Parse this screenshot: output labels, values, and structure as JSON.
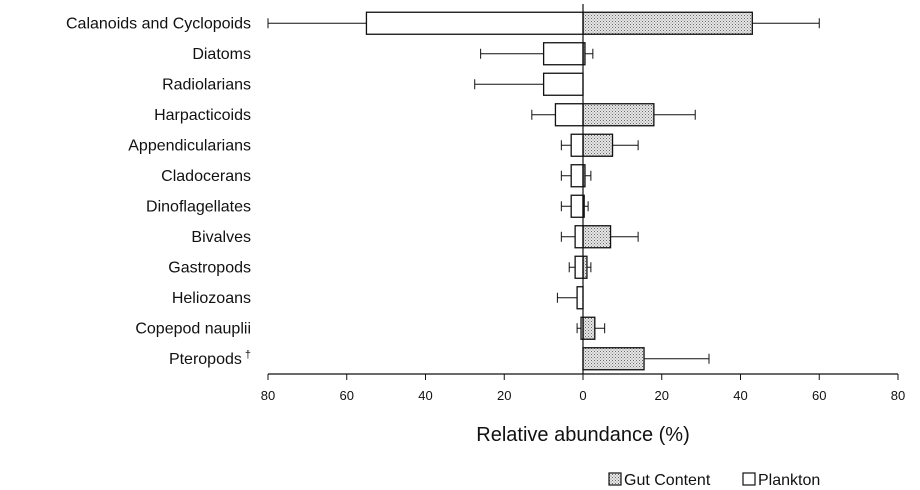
{
  "chart_data": {
    "type": "bar",
    "orientation": "horizontal-diverging",
    "xlabel": "Relative abundance (%)",
    "xlim": [
      -80,
      80
    ],
    "x_ticks": [
      -80,
      -60,
      -40,
      -20,
      0,
      20,
      40,
      60,
      80
    ],
    "x_tick_labels": [
      "80",
      "60",
      "40",
      "20",
      "0",
      "20",
      "40",
      "60",
      "80"
    ],
    "grid": false,
    "legend_position": "bottom-right",
    "categories": [
      "Calanoids and Cyclopoids",
      "Diatoms",
      "Radiolarians",
      "Harpacticoids",
      "Appendicularians",
      "Cladocerans",
      "Dinoflagellates",
      "Bivalves",
      "Gastropods",
      "Heliozoans",
      "Copepod nauplii",
      "Pteropods"
    ],
    "footnote_markers": [
      "",
      "",
      "",
      "",
      "",
      "",
      "",
      "",
      "",
      "",
      "",
      "†"
    ],
    "series": [
      {
        "name": "Gut Content",
        "side": "right",
        "fill": "dotted",
        "values": [
          43,
          0.5,
          0,
          18,
          7.5,
          0.5,
          0.3,
          7,
          1,
          0,
          3,
          15.5
        ],
        "errors": [
          17,
          2,
          0,
          10.5,
          6.5,
          1.5,
          1,
          7,
          1,
          0,
          2.5,
          16.5
        ]
      },
      {
        "name": "Plankton",
        "side": "left",
        "fill": "white",
        "values": [
          55,
          10,
          10,
          7,
          3,
          3,
          3,
          2,
          2,
          1.5,
          0.5,
          0
        ],
        "errors": [
          25,
          16,
          17.5,
          6,
          2.5,
          2.5,
          2.5,
          3.5,
          1.5,
          5,
          1,
          0
        ]
      }
    ]
  },
  "colors": {
    "bar_stroke": "#111111",
    "plankton_fill": "#ffffff",
    "gut_fill_background": "#e6e6e6",
    "gut_fill_dots": "#6a6a6a"
  }
}
